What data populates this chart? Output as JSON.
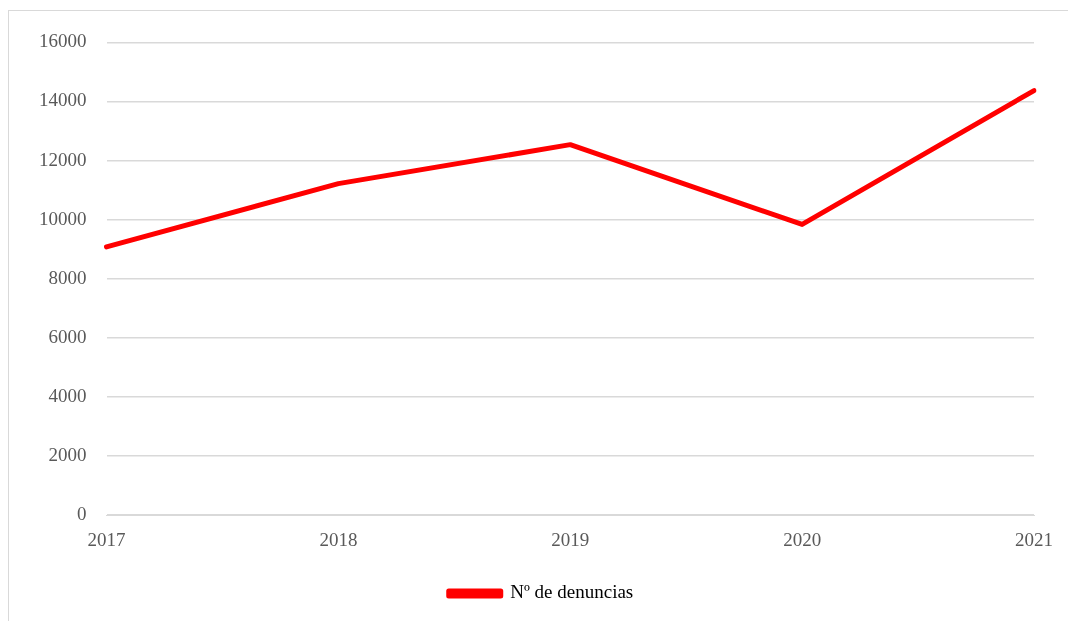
{
  "chart_data": {
    "type": "line",
    "categories": [
      "2017",
      "2018",
      "2019",
      "2020",
      "2021"
    ],
    "series": [
      {
        "name": "Nº de denuncias",
        "color": "#ff0000",
        "values": [
          9080,
          11220,
          12540,
          9840,
          14370
        ]
      }
    ],
    "ylim": [
      0,
      16000
    ],
    "yticks": [
      0,
      2000,
      4000,
      6000,
      8000,
      10000,
      12000,
      14000,
      16000
    ],
    "grid": "y",
    "legend": "bottom",
    "marker": "none",
    "line_style": "solid"
  }
}
